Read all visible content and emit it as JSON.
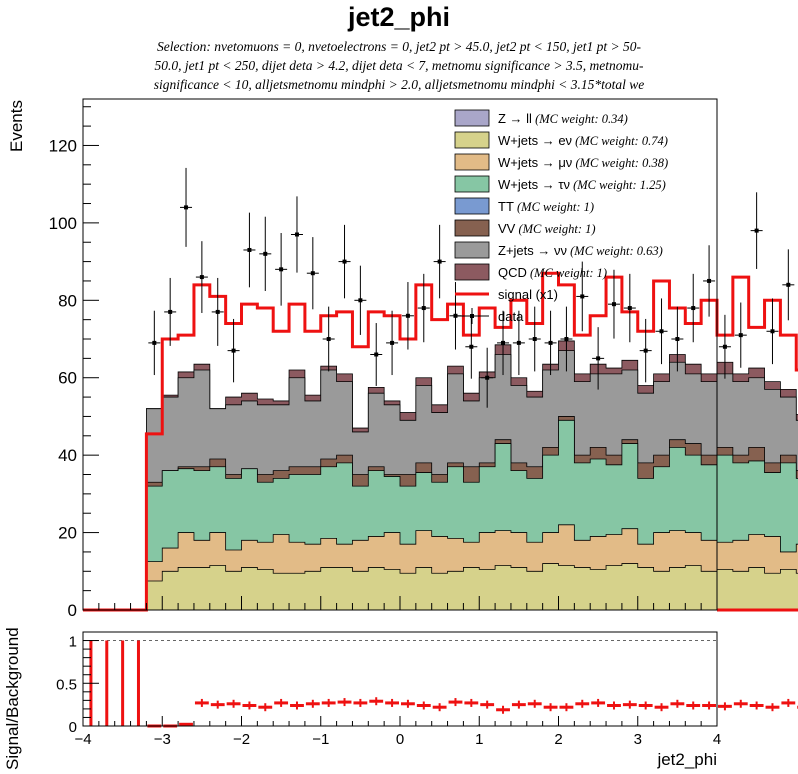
{
  "chart_data": [
    {
      "type": "area",
      "title": "jet2_phi",
      "subtitle_lines": [
        "Selection: nvetomuons = 0, nvetoelectrons = 0, jet2 pt > 45.0, jet2 pt < 150, jet1 pt > 50-",
        "50.0, jet1 pt < 250, dijet deta > 4.2, dijet deta < 7, metnomu significance > 3.5, metnomu-",
        "significance < 10, alljetsmetnomu mindphi > 2.0, alljetsmetnomu mindphi < 3.15*total we"
      ],
      "ylabel": "Events",
      "xlim": [
        -4,
        4
      ],
      "ylim": [
        0,
        132
      ],
      "yticks": [
        0,
        20,
        40,
        60,
        80,
        100,
        120
      ],
      "bin_edges_start": -3.2,
      "bin_width": 0.2,
      "legend": [
        {
          "label": "Z → ll",
          "weight": "(MC weight: 0.34)",
          "color": "#a9a6c9",
          "style": "fill"
        },
        {
          "label": "W+jets → eν",
          "weight": "(MC weight: 0.74)",
          "color": "#d6d28b",
          "style": "fill"
        },
        {
          "label": "W+jets → μν",
          "weight": "(MC weight: 0.38)",
          "color": "#e2bb87",
          "style": "fill"
        },
        {
          "label": "W+jets → τν",
          "weight": "(MC weight: 1.25)",
          "color": "#86c6a4",
          "style": "fill"
        },
        {
          "label": "TT",
          "weight": "(MC weight: 1)",
          "color": "#799ad1",
          "style": "fill"
        },
        {
          "label": "VV",
          "weight": "(MC weight: 1)",
          "color": "#866150",
          "style": "fill"
        },
        {
          "label": "Z+jets → νν",
          "weight": "(MC weight: 0.63)",
          "color": "#9a9a9a",
          "style": "fill"
        },
        {
          "label": "QCD",
          "weight": "(MC weight: 1)",
          "color": "#8c5a60",
          "style": "fill"
        },
        {
          "label": "signal (x1)",
          "weight": "",
          "color": "#ee1111",
          "style": "line"
        },
        {
          "label": "data",
          "weight": "",
          "color": "#000000",
          "style": "marker"
        }
      ],
      "stack_order": [
        "W+jets → eν",
        "W+jets → μν",
        "W+jets → τν",
        "VV",
        "Z+jets → νν",
        "QCD"
      ],
      "series": [
        {
          "name": "W+jets → eν",
          "values": [
            7.5,
            10,
            11,
            11,
            11.5,
            10,
            11,
            10.5,
            9.5,
            9.5,
            10,
            11,
            11,
            10,
            11,
            10.5,
            9.5,
            11,
            9.5,
            10,
            11,
            10.5,
            11.5,
            11,
            10,
            12,
            11.5,
            11,
            10.5,
            11.5,
            12,
            11,
            10,
            11,
            11.5,
            10,
            10.5,
            10,
            11,
            9.5,
            10.5,
            9.5
          ]
        },
        {
          "name": "W+jets → μν",
          "values": [
            12.5,
            16,
            20,
            18,
            20,
            15.5,
            18,
            17.5,
            19.5,
            17.5,
            17,
            18.5,
            17,
            18,
            19,
            20,
            17,
            20.5,
            19,
            18.5,
            17.5,
            20,
            20.5,
            20,
            17.5,
            20,
            22,
            18,
            19,
            19.5,
            21,
            17,
            20,
            20.5,
            20,
            18,
            17.5,
            18,
            19.5,
            19,
            15,
            17
          ]
        },
        {
          "name": "W+jets → τν",
          "values": [
            32,
            36,
            36.5,
            36,
            37,
            34,
            36.5,
            33,
            34,
            35,
            35,
            37,
            38,
            32,
            36,
            34.5,
            32,
            35.5,
            33,
            37,
            33,
            37,
            43,
            36,
            34,
            40,
            49,
            38,
            39,
            37.5,
            43,
            34,
            37,
            42,
            40,
            37.5,
            40,
            38,
            38.5,
            35.5,
            38,
            34
          ]
        },
        {
          "name": "VV",
          "values": [
            33,
            36,
            37,
            37,
            39,
            35,
            36,
            35,
            36,
            37,
            37,
            39,
            40,
            35,
            37,
            35,
            35,
            38,
            35,
            38,
            37,
            38,
            44,
            38,
            37,
            42,
            50,
            40,
            42,
            40,
            44,
            38,
            40,
            44,
            43,
            40,
            42,
            40,
            42,
            38,
            40,
            36
          ]
        },
        {
          "name": "Z+jets → νν",
          "values": [
            52,
            55,
            60,
            62,
            52,
            53,
            54,
            53,
            53,
            60,
            54,
            62,
            59,
            46,
            56,
            53,
            49,
            58,
            51,
            61,
            54,
            60,
            66,
            58,
            55,
            62,
            67,
            59,
            61,
            61,
            62,
            56,
            59,
            64,
            61,
            59,
            61,
            59,
            60,
            57,
            55,
            49
          ]
        },
        {
          "name": "QCD",
          "values": [
            52,
            55.5,
            61.5,
            63.5,
            52,
            55,
            56,
            54.5,
            54,
            62,
            55.5,
            63,
            61,
            47,
            57.5,
            54,
            51,
            60,
            53,
            63,
            56,
            61.5,
            68.5,
            60,
            56.5,
            63.5,
            69.5,
            61,
            63.5,
            62.5,
            64.5,
            58,
            61,
            66,
            63.5,
            61,
            64,
            61,
            62.5,
            59,
            57,
            50.5
          ]
        },
        {
          "name": "signal (x1)",
          "values": [
            45.5,
            70,
            71,
            84,
            81,
            74,
            79,
            78,
            72,
            79,
            72,
            76,
            77,
            68,
            77,
            76,
            70,
            84,
            75,
            79,
            71,
            78,
            73,
            80,
            74,
            87,
            84,
            71,
            76,
            86,
            77,
            72,
            85,
            78,
            74,
            80,
            71,
            86,
            73,
            80,
            71,
            62
          ]
        },
        {
          "name": "data",
          "values": [
            69,
            77,
            104,
            86,
            77,
            67,
            93,
            92,
            88,
            97,
            87,
            70,
            90,
            80,
            66,
            69,
            76,
            78,
            90,
            76,
            68,
            60,
            69,
            69,
            70,
            69,
            70,
            81,
            65,
            79,
            78,
            67,
            72,
            70,
            78,
            85,
            68,
            71,
            98,
            72,
            84,
            60
          ]
        }
      ]
    },
    {
      "type": "scatter",
      "ylabel": "Signal/Background",
      "xlabel": "jet2_phi",
      "xlim": [
        -4,
        4
      ],
      "ylim": [
        0,
        1.1
      ],
      "yticks": [
        "0",
        "0.5",
        "1"
      ],
      "xticks": [
        "−4",
        "−3",
        "−2",
        "−1",
        "0",
        "1",
        "2",
        "3",
        "4"
      ],
      "reference_line": 1.0,
      "series": [
        {
          "name": "signal (x1)",
          "bin_start": -4,
          "bin_width": 0.2,
          "values": [
            1,
            1,
            1,
            1,
            0,
            0,
            0.02,
            0.27,
            0.25,
            0.26,
            0.24,
            0.22,
            0.27,
            0.24,
            0.26,
            0.27,
            0.28,
            0.27,
            0.29,
            0.27,
            0.26,
            0.24,
            0.22,
            0.28,
            0.27,
            0.25,
            0.19,
            0.25,
            0.26,
            0.22,
            0.22,
            0.26,
            0.27,
            0.24,
            0.25,
            0.24,
            0.22,
            0.26,
            0.24,
            0.24,
            0.23,
            0.26,
            0.24,
            0.22,
            0.27,
            0.22,
            0.19,
            0.26,
            0.19,
            0.26,
            0.25,
            0.23,
            0.24,
            0.25,
            1,
            1,
            1,
            1,
            1,
            1
          ]
        }
      ]
    }
  ]
}
